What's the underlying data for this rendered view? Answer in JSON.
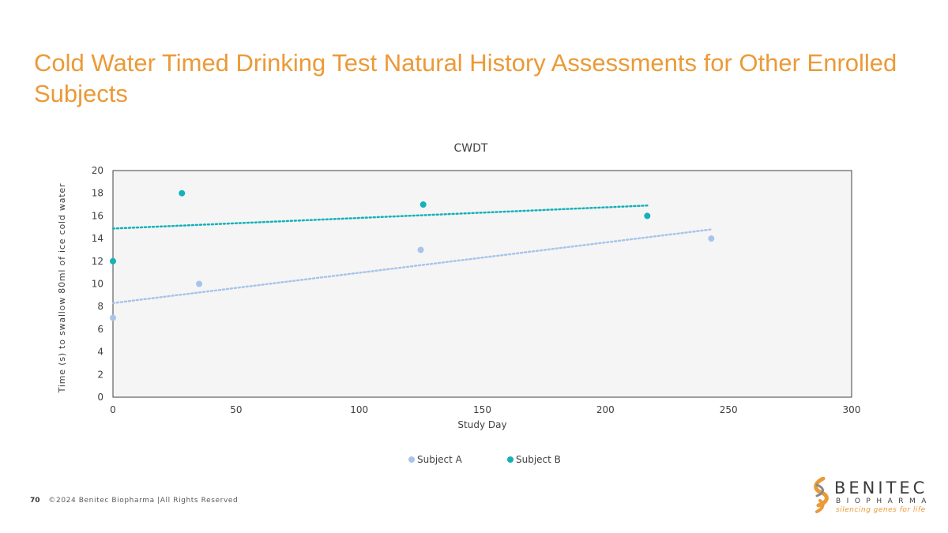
{
  "slide": {
    "title": "Cold Water Timed Drinking Test Natural History Assessments for Other Enrolled Subjects",
    "page_number": "70",
    "copyright": "©2024 Benitec Biopharma |All Rights Reserved"
  },
  "logo": {
    "brand": "BENITEC",
    "sub": "BIOPHARMA",
    "tagline": "silencing genes for life"
  },
  "colors": {
    "title": "#EB9A37",
    "subject_a": "#A9C4EB",
    "subject_b": "#14B1B9",
    "plot_bg": "#F5F5F5"
  },
  "chart_data": {
    "type": "scatter",
    "title": "CWDT",
    "xlabel": "Study Day",
    "ylabel": "Time (s) to swallow 80ml of ice cold water",
    "xlim": [
      0,
      300
    ],
    "ylim": [
      0,
      20
    ],
    "xticks": [
      0,
      50,
      100,
      150,
      200,
      250,
      300
    ],
    "yticks": [
      0,
      2,
      4,
      6,
      8,
      10,
      12,
      14,
      16,
      18,
      20
    ],
    "grid": false,
    "legend_position": "bottom",
    "series": [
      {
        "name": "Subject A",
        "color": "#A9C4EB",
        "points": [
          [
            0,
            7
          ],
          [
            35,
            10
          ],
          [
            125,
            13
          ],
          [
            243,
            14
          ]
        ],
        "trendline": "linear"
      },
      {
        "name": "Subject B",
        "color": "#14B1B9",
        "points": [
          [
            0,
            12
          ],
          [
            28,
            18
          ],
          [
            126,
            17
          ],
          [
            217,
            16
          ]
        ],
        "trendline": "linear"
      }
    ]
  }
}
